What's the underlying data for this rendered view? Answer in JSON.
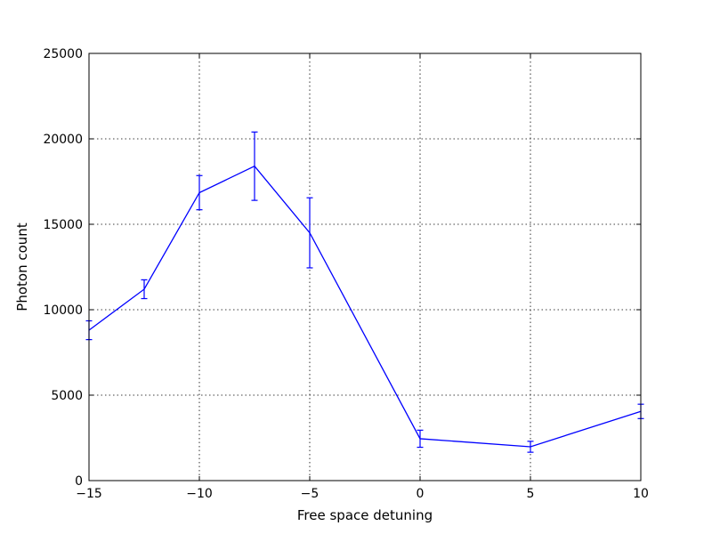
{
  "chart_data": {
    "type": "line",
    "title": "",
    "xlabel": "Free space detuning",
    "ylabel": "Photon count",
    "xlim": [
      -15,
      10
    ],
    "ylim": [
      0,
      25000
    ],
    "xticks": [
      -15,
      -10,
      -5,
      0,
      5,
      10
    ],
    "xtick_labels": [
      "−15",
      "−10",
      "−5",
      "0",
      "5",
      "10"
    ],
    "yticks": [
      0,
      5000,
      10000,
      15000,
      20000,
      25000
    ],
    "ytick_labels": [
      "0",
      "5000",
      "10000",
      "15000",
      "20000",
      "25000"
    ],
    "grid": true,
    "series": [
      {
        "color": "#0000ff",
        "x": [
          -15,
          -12.5,
          -10,
          -7.5,
          -5,
          0,
          5,
          10
        ],
        "y": [
          8800,
          11200,
          16850,
          18400,
          14500,
          2450,
          1980,
          4050
        ],
        "yerr": [
          550,
          550,
          1000,
          2000,
          2050,
          500,
          320,
          420
        ]
      }
    ]
  }
}
